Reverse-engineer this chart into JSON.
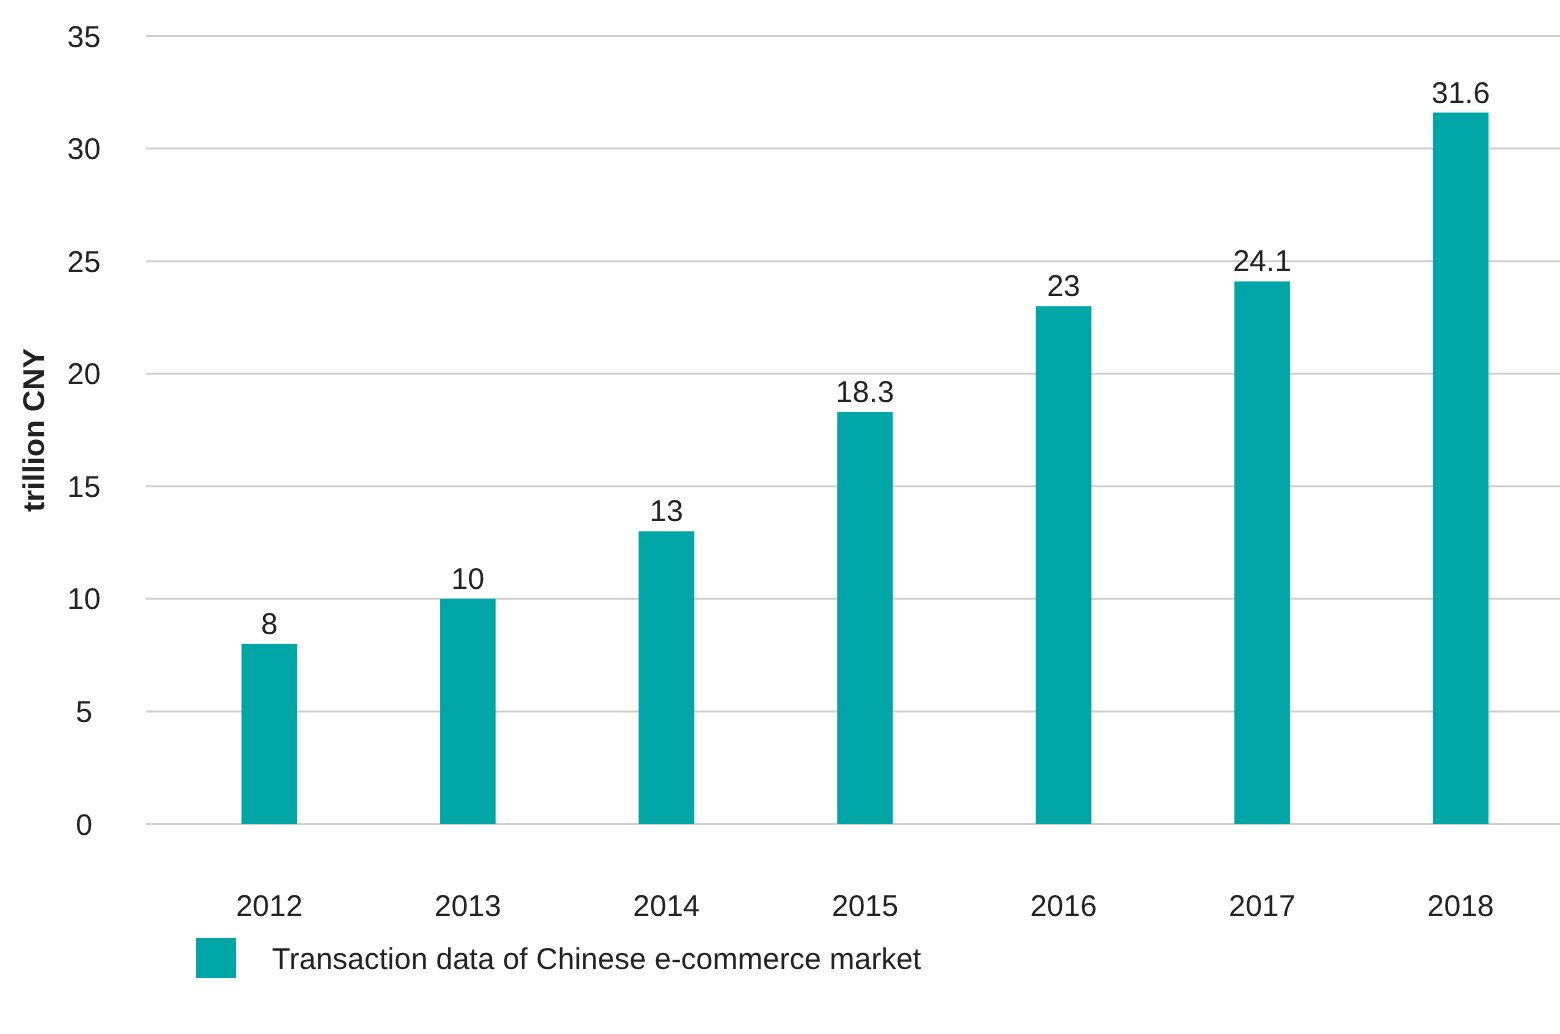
{
  "chart_data": {
    "type": "bar",
    "ylabel": "trillion CNY",
    "categories": [
      "2012",
      "2013",
      "2014",
      "2015",
      "2016",
      "2017",
      "2018"
    ],
    "series": [
      {
        "name": "Transaction data of Chinese e-commerce market",
        "color": "#00a6a6",
        "values": [
          8,
          10,
          13,
          18.3,
          23,
          24.1,
          31.6
        ]
      }
    ],
    "ylim": [
      0,
      35
    ],
    "yticks": [
      0,
      5,
      10,
      15,
      20,
      25,
      30,
      35
    ],
    "grid": "y",
    "legend": "bottom",
    "data_labels": true
  }
}
